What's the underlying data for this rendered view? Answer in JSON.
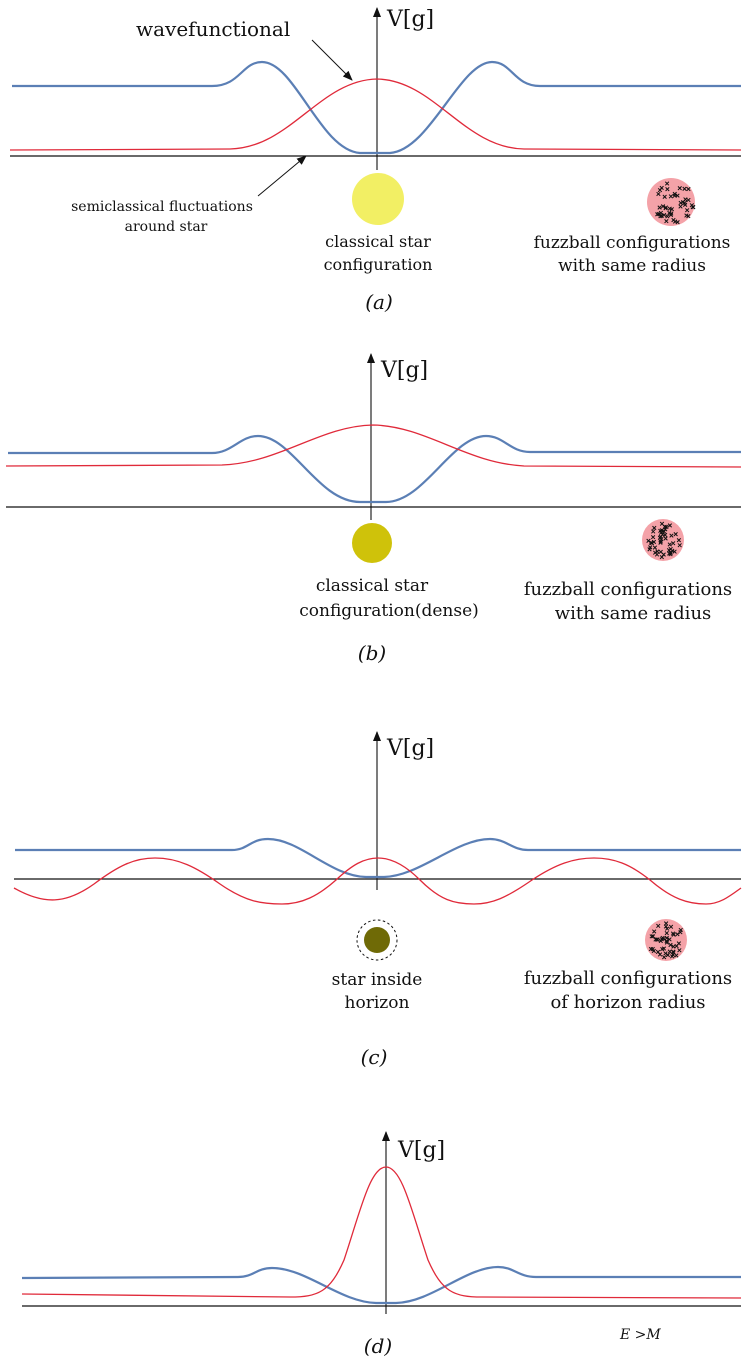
{
  "colors": {
    "potential": "#5b7fb5",
    "wavefunctional": "#e02a3a",
    "axis": "#111111",
    "star_a": "#f2ef64",
    "star_b": "#cfc20a",
    "star_c": "#6f6a06",
    "fuzzball": "#f4a2a8",
    "fuzzball_marks": "#111111"
  },
  "panel_a": {
    "axis_label": "V[g]",
    "curve_label": "wavefunctional",
    "fluct_label": [
      "semiclassical fluctuations",
      "around star"
    ],
    "star_label": [
      "classical star",
      "configuration"
    ],
    "fuzz_label": [
      "fuzzball configurations",
      "with same radius"
    ],
    "caption": "(a)"
  },
  "panel_b": {
    "axis_label": "V[g]",
    "star_label": [
      "classical star",
      "configuration(dense)"
    ],
    "fuzz_label": [
      "fuzzball configurations",
      "with same radius"
    ],
    "caption": "(b)"
  },
  "panel_c": {
    "axis_label": "V[g]",
    "star_label": [
      "star inside",
      "horizon"
    ],
    "fuzz_label": [
      "fuzzball configurations",
      "of horizon radius"
    ],
    "caption": "(c)"
  },
  "panel_d": {
    "axis_label": "V[g]",
    "energy_label": "E >M",
    "caption": "(d)"
  }
}
